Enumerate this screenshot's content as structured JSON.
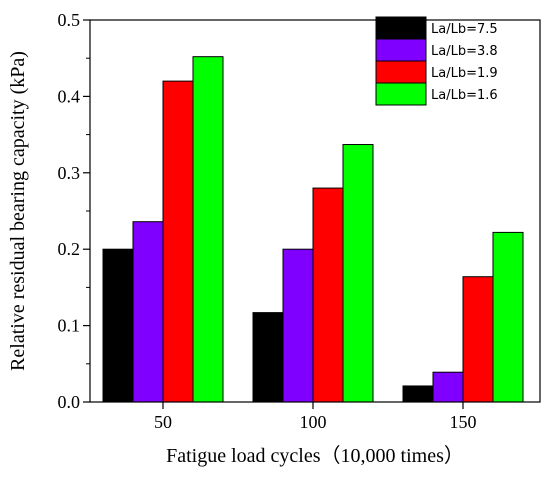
{
  "chart_data": {
    "type": "bar",
    "title": "",
    "xlabel": "Fatigue load cycles（10,000 times）",
    "ylabel": "Relative residual bearing capacity (kPa)",
    "categories": [
      "50",
      "100",
      "150"
    ],
    "ylim": [
      0,
      0.5
    ],
    "yticks": [
      "0.0",
      "0.1",
      "0.2",
      "0.3",
      "0.4",
      "0.5"
    ],
    "legend_position": "top-right",
    "grid": false,
    "series": [
      {
        "name": "La/Lb=7.5",
        "color": "#000000",
        "values": [
          0.2,
          0.117,
          0.021
        ]
      },
      {
        "name": "La/Lb=3.8",
        "color": "#8000ff",
        "values": [
          0.236,
          0.2,
          0.039
        ]
      },
      {
        "name": "La/Lb=1.9",
        "color": "#ff0000",
        "values": [
          0.42,
          0.28,
          0.164
        ]
      },
      {
        "name": "La/Lb=1.6",
        "color": "#00ff00",
        "values": [
          0.452,
          0.337,
          0.222
        ]
      }
    ]
  }
}
